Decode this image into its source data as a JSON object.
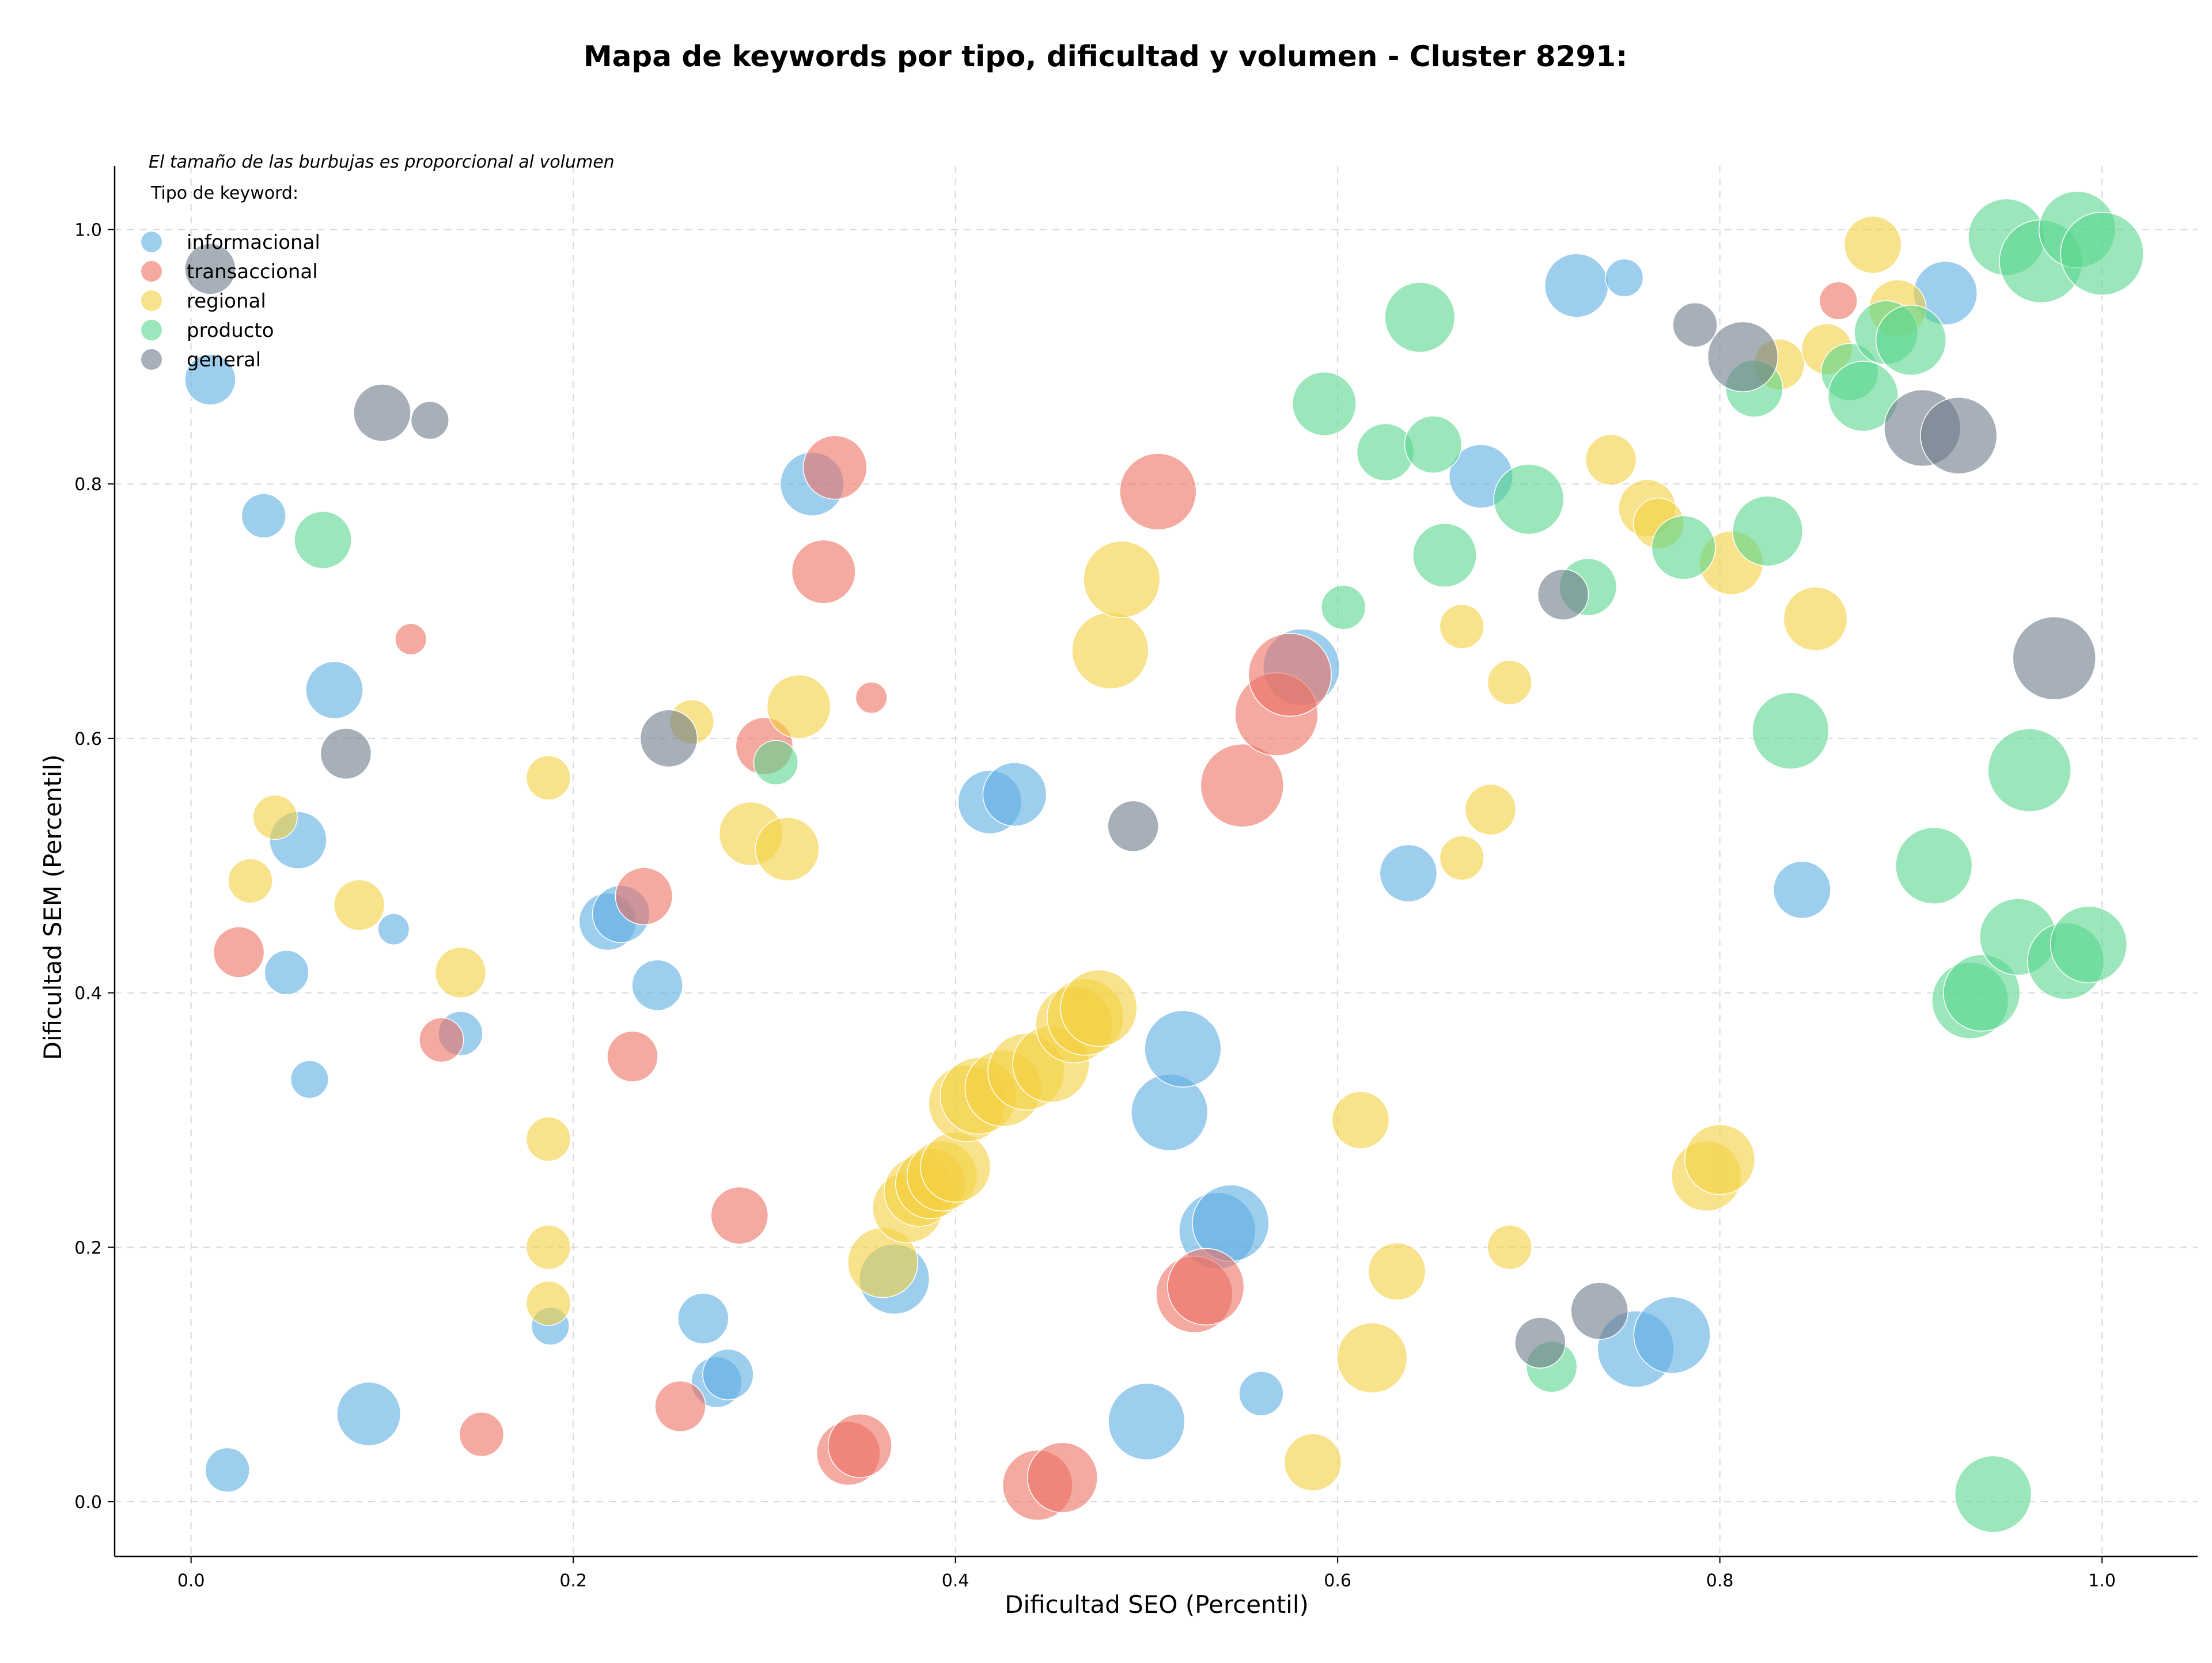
{
  "colors": {
    "informacional": "#5dade2",
    "transaccional": "#ec7063",
    "regional": "#f4d03f",
    "producto": "#58d68d",
    "general": "#6c7a89"
  },
  "chart_data": {
    "type": "scatter",
    "title": "Mapa de keywords por tipo, dificultad y volumen - Cluster 8291:",
    "xlabel": "Dificultad SEO (Percentil)",
    "ylabel": "Dificultad SEM (Percentil)",
    "note": "El tamaño de las burbujas es proporcional al volumen",
    "legend_title": "Tipo de keyword:",
    "legend_position": "top-left",
    "grid": true,
    "xlim": [
      -0.04,
      1.05
    ],
    "ylim": [
      -0.043,
      1.05
    ],
    "x_ticks": [
      "0.0",
      "0.2",
      "0.4",
      "0.6",
      "0.8",
      "1.0"
    ],
    "y_ticks": [
      "0.0",
      "0.2",
      "0.4",
      "0.6",
      "0.8",
      "1.0"
    ],
    "size_note": "bubble size encodes search volume (relative 1-10)",
    "series": [
      {
        "name": "informacional",
        "points": [
          [
            0.01,
            0.882,
            5
          ],
          [
            0.038,
            0.775,
            4
          ],
          [
            0.075,
            0.638,
            6
          ],
          [
            0.056,
            0.52,
            6
          ],
          [
            0.05,
            0.416,
            4
          ],
          [
            0.062,
            0.332,
            3
          ],
          [
            0.106,
            0.45,
            2
          ],
          [
            0.141,
            0.368,
            4
          ],
          [
            0.093,
            0.069,
            7
          ],
          [
            0.019,
            0.025,
            4
          ],
          [
            0.188,
            0.138,
            3
          ],
          [
            0.218,
            0.456,
            6
          ],
          [
            0.225,
            0.462,
            6
          ],
          [
            0.244,
            0.406,
            5
          ],
          [
            0.268,
            0.144,
            5
          ],
          [
            0.275,
            0.094,
            5
          ],
          [
            0.281,
            0.1,
            5
          ],
          [
            0.325,
            0.8,
            7
          ],
          [
            0.368,
            0.175,
            8
          ],
          [
            0.418,
            0.55,
            7
          ],
          [
            0.431,
            0.556,
            7
          ],
          [
            0.5,
            0.063,
            9
          ],
          [
            0.512,
            0.306,
            9
          ],
          [
            0.519,
            0.356,
            9
          ],
          [
            0.537,
            0.213,
            9
          ],
          [
            0.544,
            0.219,
            9
          ],
          [
            0.56,
            0.085,
            4
          ],
          [
            0.581,
            0.656,
            9
          ],
          [
            0.637,
            0.494,
            6
          ],
          [
            0.675,
            0.806,
            7
          ],
          [
            0.725,
            0.956,
            7
          ],
          [
            0.75,
            0.962,
            3
          ],
          [
            0.756,
            0.12,
            9
          ],
          [
            0.775,
            0.131,
            9
          ],
          [
            0.843,
            0.481,
            6
          ],
          [
            0.918,
            0.95,
            7
          ]
        ]
      },
      {
        "name": "transaccional",
        "points": [
          [
            0.025,
            0.432,
            5
          ],
          [
            0.115,
            0.678,
            2
          ],
          [
            0.131,
            0.363,
            4
          ],
          [
            0.152,
            0.053,
            4
          ],
          [
            0.231,
            0.35,
            5
          ],
          [
            0.237,
            0.476,
            6
          ],
          [
            0.256,
            0.075,
            5
          ],
          [
            0.287,
            0.225,
            6
          ],
          [
            0.3,
            0.594,
            6
          ],
          [
            0.331,
            0.731,
            7
          ],
          [
            0.337,
            0.813,
            7
          ],
          [
            0.344,
            0.038,
            7
          ],
          [
            0.35,
            0.044,
            7
          ],
          [
            0.356,
            0.632,
            2
          ],
          [
            0.443,
            0.013,
            8
          ],
          [
            0.456,
            0.019,
            8
          ],
          [
            0.506,
            0.794,
            9
          ],
          [
            0.525,
            0.163,
            9
          ],
          [
            0.531,
            0.169,
            9
          ],
          [
            0.55,
            0.563,
            10
          ],
          [
            0.568,
            0.619,
            10
          ],
          [
            0.575,
            0.65,
            10
          ],
          [
            0.862,
            0.944,
            3
          ]
        ]
      },
      {
        "name": "regional",
        "points": [
          [
            0.031,
            0.488,
            4
          ],
          [
            0.044,
            0.538,
            4
          ],
          [
            0.088,
            0.469,
            5
          ],
          [
            0.141,
            0.416,
            5
          ],
          [
            0.187,
            0.569,
            4
          ],
          [
            0.187,
            0.285,
            4
          ],
          [
            0.187,
            0.2,
            4
          ],
          [
            0.187,
            0.156,
            4
          ],
          [
            0.262,
            0.613,
            4
          ],
          [
            0.293,
            0.525,
            7
          ],
          [
            0.312,
            0.513,
            7
          ],
          [
            0.318,
            0.625,
            7
          ],
          [
            0.362,
            0.188,
            8
          ],
          [
            0.375,
            0.231,
            8
          ],
          [
            0.381,
            0.244,
            8
          ],
          [
            0.387,
            0.25,
            8
          ],
          [
            0.393,
            0.256,
            8
          ],
          [
            0.4,
            0.263,
            8
          ],
          [
            0.406,
            0.313,
            9
          ],
          [
            0.412,
            0.319,
            9
          ],
          [
            0.425,
            0.325,
            9
          ],
          [
            0.437,
            0.338,
            9
          ],
          [
            0.45,
            0.344,
            9
          ],
          [
            0.462,
            0.375,
            9
          ],
          [
            0.468,
            0.381,
            9
          ],
          [
            0.475,
            0.388,
            9
          ],
          [
            0.481,
            0.669,
            9
          ],
          [
            0.487,
            0.725,
            9
          ],
          [
            0.587,
            0.031,
            6
          ],
          [
            0.612,
            0.3,
            6
          ],
          [
            0.618,
            0.113,
            8
          ],
          [
            0.631,
            0.181,
            6
          ],
          [
            0.665,
            0.688,
            4
          ],
          [
            0.665,
            0.506,
            4
          ],
          [
            0.68,
            0.544,
            5
          ],
          [
            0.69,
            0.644,
            4
          ],
          [
            0.69,
            0.2,
            4
          ],
          [
            0.743,
            0.819,
            5
          ],
          [
            0.762,
            0.781,
            6
          ],
          [
            0.768,
            0.769,
            5
          ],
          [
            0.793,
            0.256,
            8
          ],
          [
            0.8,
            0.269,
            8
          ],
          [
            0.806,
            0.738,
            7
          ],
          [
            0.831,
            0.894,
            5
          ],
          [
            0.85,
            0.694,
            7
          ],
          [
            0.856,
            0.906,
            5
          ],
          [
            0.88,
            0.988,
            6
          ],
          [
            0.893,
            0.938,
            6
          ]
        ]
      },
      {
        "name": "producto",
        "points": [
          [
            0.069,
            0.756,
            6
          ],
          [
            0.306,
            0.581,
            4
          ],
          [
            0.593,
            0.863,
            7
          ],
          [
            0.603,
            0.703,
            4
          ],
          [
            0.625,
            0.825,
            6
          ],
          [
            0.643,
            0.931,
            8
          ],
          [
            0.65,
            0.831,
            6
          ],
          [
            0.656,
            0.744,
            7
          ],
          [
            0.7,
            0.788,
            8
          ],
          [
            0.712,
            0.106,
            5
          ],
          [
            0.731,
            0.719,
            6
          ],
          [
            0.781,
            0.75,
            7
          ],
          [
            0.818,
            0.875,
            6
          ],
          [
            0.825,
            0.763,
            8
          ],
          [
            0.837,
            0.606,
            9
          ],
          [
            0.868,
            0.888,
            6
          ],
          [
            0.875,
            0.869,
            8
          ],
          [
            0.887,
            0.919,
            7
          ],
          [
            0.9,
            0.913,
            8
          ],
          [
            0.912,
            0.5,
            9
          ],
          [
            0.931,
            0.394,
            9
          ],
          [
            0.937,
            0.4,
            9
          ],
          [
            0.943,
            0.006,
            9
          ],
          [
            0.95,
            0.994,
            9
          ],
          [
            0.956,
            0.444,
            9
          ],
          [
            0.962,
            0.575,
            10
          ],
          [
            0.968,
            0.975,
            10
          ],
          [
            0.981,
            0.425,
            9
          ],
          [
            0.987,
            1.0,
            9
          ],
          [
            0.993,
            0.438,
            9
          ],
          [
            1.0,
            0.981,
            10
          ]
        ]
      },
      {
        "name": "general",
        "points": [
          [
            0.01,
            0.969,
            5
          ],
          [
            0.1,
            0.856,
            6
          ],
          [
            0.125,
            0.85,
            3
          ],
          [
            0.081,
            0.588,
            5
          ],
          [
            0.25,
            0.6,
            6
          ],
          [
            0.493,
            0.531,
            5
          ],
          [
            0.706,
            0.125,
            5
          ],
          [
            0.718,
            0.713,
            5
          ],
          [
            0.737,
            0.15,
            6
          ],
          [
            0.787,
            0.925,
            4
          ],
          [
            0.812,
            0.9,
            8
          ],
          [
            0.906,
            0.844,
            9
          ],
          [
            0.925,
            0.838,
            9
          ],
          [
            0.975,
            0.663,
            10
          ]
        ]
      }
    ]
  }
}
